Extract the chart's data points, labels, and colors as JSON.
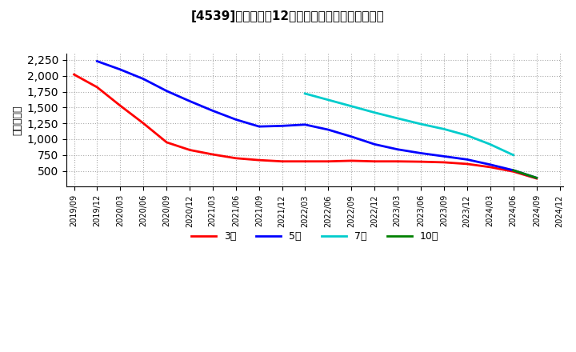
{
  "title": "[4539]　経常利益12か月移動合計の平均値の推移",
  "ylabel": "（百万円）",
  "background_color": "#ffffff",
  "plot_background": "#ffffff",
  "grid_color": "#aaaaaa",
  "ylim": [
    250,
    2350
  ],
  "yticks": [
    500,
    750,
    1000,
    1250,
    1500,
    1750,
    2000,
    2250
  ],
  "series": {
    "3year": {
      "label": "3年",
      "color": "#ff0000",
      "dates": [
        "2019-09",
        "2019-12",
        "2020-03",
        "2020-06",
        "2020-09",
        "2020-12",
        "2021-03",
        "2021-06",
        "2021-09",
        "2021-12",
        "2022-03",
        "2022-06",
        "2022-09",
        "2022-12",
        "2023-03",
        "2023-06",
        "2023-09",
        "2023-12",
        "2024-03",
        "2024-06",
        "2024-09"
      ],
      "values": [
        2020,
        1820,
        1530,
        1250,
        950,
        830,
        760,
        700,
        670,
        650,
        650,
        650,
        660,
        650,
        650,
        645,
        635,
        610,
        560,
        490,
        380
      ]
    },
    "5year": {
      "label": "5年",
      "color": "#0000ff",
      "dates": [
        "2019-12",
        "2020-03",
        "2020-06",
        "2020-09",
        "2020-12",
        "2021-03",
        "2021-06",
        "2021-09",
        "2021-12",
        "2022-03",
        "2022-06",
        "2022-09",
        "2022-12",
        "2023-03",
        "2023-06",
        "2023-09",
        "2023-12",
        "2024-03",
        "2024-06",
        "2024-09"
      ],
      "values": [
        2230,
        2100,
        1950,
        1760,
        1600,
        1450,
        1310,
        1200,
        1210,
        1230,
        1150,
        1040,
        920,
        840,
        780,
        730,
        680,
        600,
        510,
        390
      ]
    },
    "7year": {
      "label": "7年",
      "color": "#00cccc",
      "dates": [
        "2022-03",
        "2022-06",
        "2022-09",
        "2022-12",
        "2023-03",
        "2023-06",
        "2023-09",
        "2023-12",
        "2024-03",
        "2024-06"
      ],
      "values": [
        1720,
        1620,
        1520,
        1420,
        1330,
        1240,
        1160,
        1060,
        920,
        750
      ]
    },
    "10year": {
      "label": "10年",
      "color": "#008000",
      "dates": [
        "2024-06",
        "2024-09"
      ],
      "values": [
        510,
        390
      ]
    }
  },
  "xtick_dates": [
    "2019/09",
    "2019/12",
    "2020/03",
    "2020/06",
    "2020/09",
    "2020/12",
    "2021/03",
    "2021/06",
    "2021/09",
    "2021/12",
    "2022/03",
    "2022/06",
    "2022/09",
    "2022/12",
    "2023/03",
    "2023/06",
    "2023/09",
    "2023/12",
    "2024/03",
    "2024/06",
    "2024/09",
    "2024/12"
  ],
  "legend_labels": [
    "3年",
    "5年",
    "7年",
    "10年"
  ],
  "legend_colors": [
    "#ff0000",
    "#0000ff",
    "#00cccc",
    "#008000"
  ]
}
